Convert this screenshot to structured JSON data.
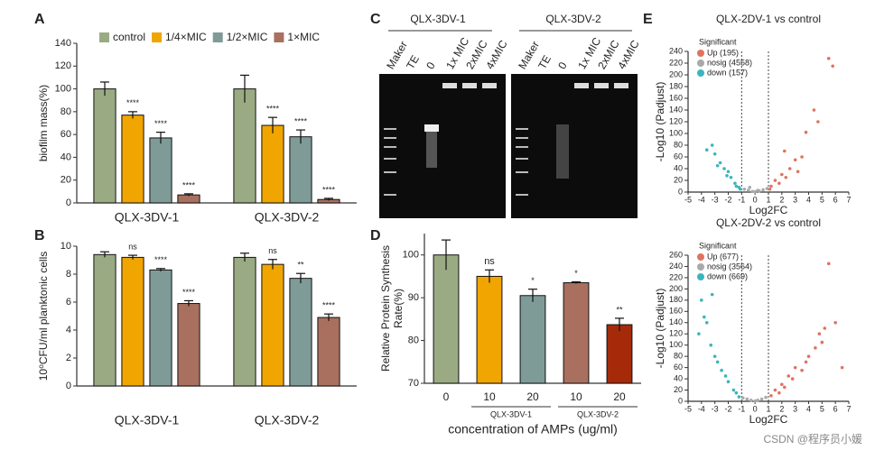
{
  "chart_data": [
    {
      "panel": "A",
      "type": "bar",
      "ylabel": "biofilm mass(%)",
      "categories": [
        "QLX-3DV-1",
        "QLX-3DV-2"
      ],
      "series": [
        {
          "name": "control",
          "color": "#9aab84",
          "values": [
            100,
            100
          ],
          "errors": [
            6,
            12
          ]
        },
        {
          "name": "1/4×MIC",
          "color": "#f0a500",
          "values": [
            77,
            68
          ],
          "errors": [
            3,
            7
          ],
          "annotations": [
            "****",
            "****"
          ]
        },
        {
          "name": "1/2×MIC",
          "color": "#7f9b98",
          "values": [
            57,
            58
          ],
          "errors": [
            5,
            6
          ],
          "annotations": [
            "****",
            "****"
          ]
        },
        {
          "name": "1×MIC",
          "color": "#a9705f",
          "values": [
            7,
            3
          ],
          "errors": [
            1,
            1
          ],
          "annotations": [
            "****",
            "****"
          ]
        }
      ],
      "ylim": [
        0,
        140
      ],
      "yticks": [
        0,
        20,
        40,
        60,
        80,
        100,
        120,
        140
      ],
      "legend": "top"
    },
    {
      "panel": "B",
      "type": "bar",
      "ylabel": "10⁰CFU/ml planktonic cells",
      "categories": [
        "QLX-3DV-1",
        "QLX-3DV-2"
      ],
      "series": [
        {
          "color": "#9aab84",
          "values": [
            9.4,
            9.2
          ],
          "errors": [
            0.2,
            0.3
          ]
        },
        {
          "color": "#f0a500",
          "values": [
            9.2,
            8.7
          ],
          "errors": [
            0.15,
            0.35
          ],
          "annotations": [
            "ns",
            "ns"
          ]
        },
        {
          "color": "#7f9b98",
          "values": [
            8.3,
            7.7
          ],
          "errors": [
            0.1,
            0.35
          ],
          "annotations": [
            "****",
            "**"
          ]
        },
        {
          "color": "#a9705f",
          "values": [
            5.9,
            4.9
          ],
          "errors": [
            0.2,
            0.25
          ],
          "annotations": [
            "****",
            "****"
          ]
        }
      ],
      "ylim": [
        0,
        10
      ],
      "yticks": [
        0,
        2,
        4,
        6,
        8,
        10
      ]
    },
    {
      "panel": "D",
      "type": "bar",
      "ylabel": [
        "Relative Protein Synthesis",
        "Rate(%)"
      ],
      "xlabel": "concentration of AMPs (ug/ml)",
      "categories": [
        "0",
        "10",
        "20",
        "10",
        "20"
      ],
      "groups": [
        "QLX-3DV-1",
        "QLX-3DV-2"
      ],
      "values": [
        100,
        95,
        90.5,
        93.5,
        83.7
      ],
      "errors": [
        3.5,
        1.5,
        1.5,
        0.2,
        1.5
      ],
      "colors": [
        "#9aab84",
        "#f0a500",
        "#7f9b98",
        "#a9705f",
        "#a52a0a"
      ],
      "annotations": [
        null,
        "ns",
        "*",
        "*",
        "**"
      ],
      "ylim": [
        70,
        105
      ],
      "yticks": [
        70,
        80,
        90,
        100
      ]
    },
    {
      "panel": "E",
      "type": "scatter",
      "title": "QLX-2DV-1 vs control",
      "xlabel": "Log2FC",
      "ylabel": "-Log10 (Padjust)",
      "legend_title": "Significant",
      "thresholds": [
        -1,
        1
      ],
      "series": [
        {
          "name": "Up (195)",
          "color": "#e0735e",
          "x": [
            1.1,
            1.2,
            1.5,
            1.8,
            2.0,
            2.2,
            2.3,
            2.6,
            3.0,
            3.2,
            3.5,
            3.8,
            4.4,
            4.7,
            5.5,
            5.8
          ],
          "values": [
            5,
            10,
            20,
            15,
            30,
            70,
            25,
            40,
            55,
            35,
            60,
            102,
            140,
            120,
            228,
            215
          ]
        },
        {
          "name": "nosig (4558)",
          "color": "#a9a9a9",
          "x": [
            -0.8,
            -0.5,
            -0.4,
            -0.2,
            0,
            0.2,
            0.3,
            0.6,
            0.9
          ],
          "values": [
            5,
            3,
            8,
            1,
            0.5,
            3,
            2,
            4,
            6
          ]
        },
        {
          "name": "down (157)",
          "color": "#3ab5be",
          "x": [
            -1.1,
            -1.2,
            -1.4,
            -1.5,
            -1.8,
            -2.0,
            -2.1,
            -2.3,
            -2.6,
            -2.8,
            -3.0,
            -3.2,
            -3.6
          ],
          "values": [
            5,
            8,
            10,
            15,
            25,
            35,
            28,
            40,
            50,
            45,
            65,
            80,
            72
          ]
        }
      ],
      "xlim": [
        -5,
        7
      ],
      "xticks": [
        -5,
        -4,
        -3,
        -2,
        -1,
        0,
        1,
        2,
        3,
        4,
        5,
        6,
        7
      ],
      "ylim": [
        0,
        240
      ],
      "yticks": [
        0,
        20,
        40,
        60,
        80,
        100,
        120,
        140,
        160,
        180,
        200,
        220,
        240
      ]
    },
    {
      "panel": "",
      "type": "scatter",
      "title": "QLX-2DV-2 vs control",
      "xlabel": "Log2FC",
      "ylabel": "-Log10 (Padjust)",
      "legend_title": "Significant",
      "thresholds": [
        -1,
        1
      ],
      "series": [
        {
          "name": "Up (677)",
          "color": "#e0735e",
          "x": [
            1.2,
            1.5,
            1.8,
            2.0,
            2.2,
            2.5,
            2.8,
            3.0,
            3.5,
            3.8,
            4.0,
            4.5,
            4.8,
            5.0,
            5.2,
            5.5,
            6.0,
            6.5
          ],
          "values": [
            10,
            20,
            15,
            30,
            25,
            45,
            40,
            60,
            55,
            70,
            80,
            95,
            120,
            105,
            130,
            245,
            140,
            60
          ]
        },
        {
          "name": "nosig (3564)",
          "color": "#a9a9a9",
          "x": [
            -0.9,
            -0.6,
            -0.3,
            0,
            0.2,
            0.5,
            0.8
          ],
          "values": [
            6,
            4,
            2,
            0.5,
            2,
            4,
            7
          ]
        },
        {
          "name": "down (669)",
          "color": "#3ab5be",
          "x": [
            -1.2,
            -1.4,
            -1.6,
            -2.0,
            -2.2,
            -2.5,
            -2.8,
            -3.0,
            -3.2,
            -3.3,
            -3.6,
            -3.8,
            -4.0,
            -4.2
          ],
          "values": [
            8,
            15,
            20,
            35,
            45,
            55,
            70,
            80,
            190,
            100,
            140,
            150,
            180,
            120
          ]
        }
      ],
      "xlim": [
        -5,
        7
      ],
      "xticks": [
        -5,
        -4,
        -3,
        -2,
        -1,
        0,
        1,
        2,
        3,
        4,
        5,
        6,
        7
      ],
      "ylim": [
        0,
        260
      ],
      "yticks": [
        0,
        20,
        40,
        60,
        80,
        100,
        120,
        140,
        160,
        180,
        200,
        220,
        240,
        260
      ]
    }
  ],
  "gel": {
    "panel": "C",
    "parts": [
      {
        "title": "QLX-3DV-1",
        "lanes": [
          "Maker",
          "TE",
          "0",
          "1x MIC",
          "2xMIC",
          "4xMIC"
        ]
      },
      {
        "title": "QLX-3DV-2",
        "lanes": [
          "Maker",
          "TE",
          "0",
          "1x MIC",
          "2xMIC",
          "4xMIC"
        ]
      }
    ]
  },
  "watermark": "CSDN @程序员小媛"
}
